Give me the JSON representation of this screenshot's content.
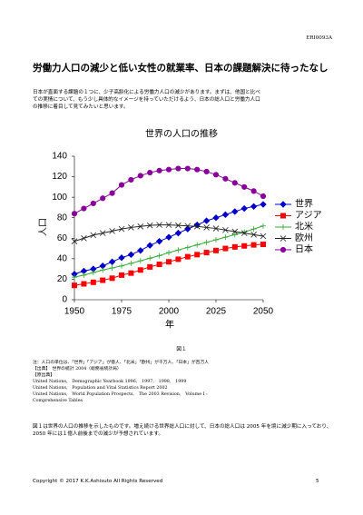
{
  "header": {
    "code": "ERI0093A",
    "title": "労働力人口の減少と低い女性の就業率、日本の課題解決に待ったなし"
  },
  "intro": [
    "日本が直面する課題の１つに、少子高齢化による労働力人口の減少があります。まずは、他国と比べ",
    "ての実情について、もう少し具体的なイメージを持っていただけるよう、日本の総人口と労働力人口",
    "の推移に着目して見てみたいと思います。"
  ],
  "chart_data": {
    "type": "line",
    "title": "世界の人口の推移",
    "x_label": "年",
    "y_label": "人口",
    "x": [
      1950,
      1955,
      1960,
      1965,
      1970,
      1975,
      1980,
      1985,
      1990,
      1995,
      2000,
      2005,
      2010,
      2015,
      2020,
      2025,
      2030,
      2035,
      2040,
      2045,
      2050
    ],
    "xlim": [
      1950,
      2050
    ],
    "xticks": [
      1950,
      1975,
      2000,
      2025,
      2050
    ],
    "ylim": [
      0,
      140
    ],
    "yticks": [
      0,
      20,
      40,
      60,
      80,
      100,
      120,
      140
    ],
    "legend": "right",
    "series": [
      {
        "name": "世界",
        "color": "#0000cc",
        "marker": "diamond",
        "values": [
          25,
          28,
          30,
          33,
          37,
          41,
          44,
          48,
          53,
          57,
          61,
          65,
          69,
          73,
          77,
          80,
          83,
          86,
          89,
          91,
          93
        ]
      },
      {
        "name": "アジア",
        "color": "#ff0000",
        "marker": "square",
        "values": [
          14,
          15.5,
          17,
          19,
          21,
          24,
          26,
          29,
          32,
          34.5,
          37,
          39.5,
          42,
          44,
          46,
          48,
          50,
          51.5,
          52.5,
          53.5,
          54
        ]
      },
      {
        "name": "北米",
        "color": "#33aa33",
        "marker": "plus",
        "values": [
          22,
          24,
          26.5,
          29,
          31,
          33,
          35.5,
          38,
          40.5,
          43,
          46,
          48.5,
          51,
          53.5,
          56,
          58.5,
          61,
          63.5,
          66,
          69,
          72
        ]
      },
      {
        "name": "欧州",
        "color": "#222222",
        "marker": "x",
        "values": [
          57,
          60,
          63,
          65,
          67,
          69,
          70.5,
          71.5,
          72.5,
          73,
          73,
          72.5,
          72,
          71.5,
          70.5,
          69.5,
          68,
          66.5,
          65,
          63.5,
          62
        ]
      },
      {
        "name": "日本",
        "color": "#880099",
        "marker": "circle",
        "values": [
          84,
          89,
          94,
          99,
          104,
          112,
          117,
          121,
          124,
          126,
          127,
          128,
          128,
          127,
          125,
          122,
          118,
          114,
          110,
          106,
          101
        ]
      }
    ]
  },
  "caption": "図１",
  "notes": [
    "注：人口の単位は、「世界」「アジア」が億人、「北米」「欧州」が千万人、「日本」が百万人",
    "【出典】　世界の統計 2004（総務省統計局）",
    "【原出典】",
    "United Nations,　Demographic Yearbook 1996,　1997,　1998,　1999",
    "United Nations,　Population and Vital Statistics Report 2002",
    "United Nations,　World Population Prospects,　The 2003 Revision,　Volume I :",
    "Comprehensive Tables"
  ],
  "summary": "図１は世界の人口の推移を示したものです。増え続ける世界総人口に対して、日本の総人口は 2005 年を境に減少期に入っており、2050 年には１億人前後までの減少が予想されています。",
  "footer": {
    "copyright": "Copyright © 2017 K.K.Ashisuto All Rights Reserved",
    "page": "5"
  }
}
